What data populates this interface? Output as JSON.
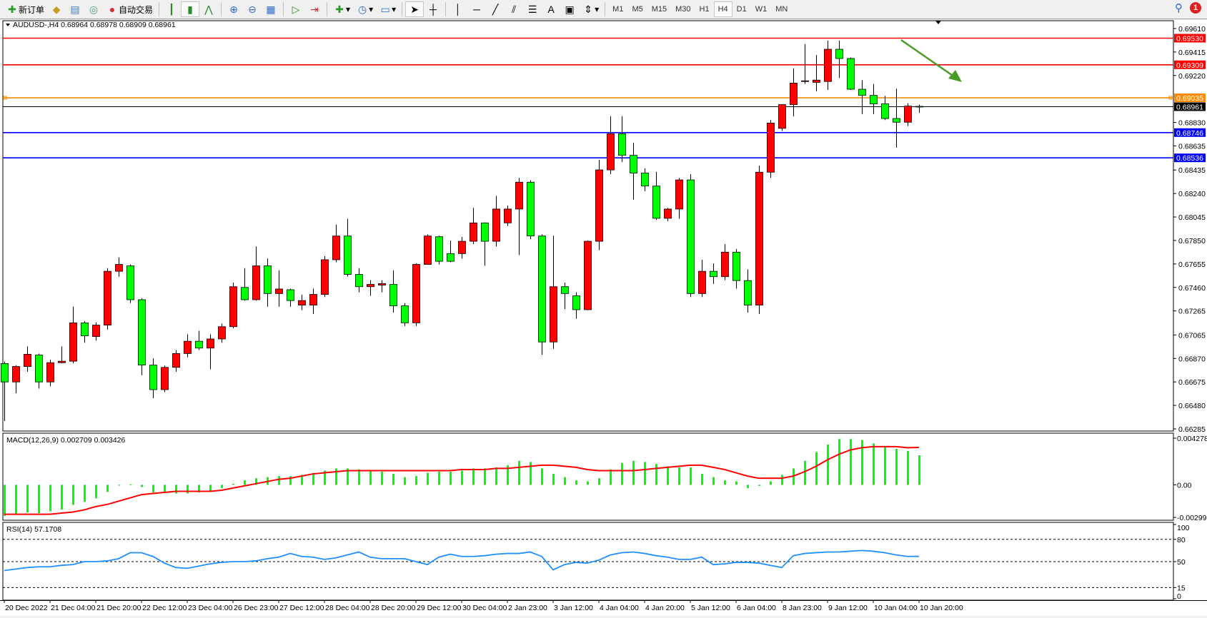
{
  "toolbar": {
    "new_order_label": "新订单",
    "auto_trading_label": "自动交易",
    "icons": [
      "new-order-icon",
      "history-icon",
      "market-watch-icon",
      "signal-icon",
      "auto-trading-icon",
      "bar-chart-icon",
      "candlestick-icon",
      "line-chart-icon",
      "zoom-in-icon",
      "zoom-out-icon",
      "tile-windows-icon",
      "chart-shift-icon",
      "autoscroll-icon",
      "indicators-icon",
      "periods-icon",
      "templates-icon",
      "cursor-icon",
      "crosshair-icon",
      "vertical-line-icon",
      "horizontal-line-icon",
      "trendline-icon",
      "fibonacci-icon",
      "fibo-fan-icon",
      "text-icon",
      "label-icon",
      "arrows-icon"
    ],
    "timeframes": [
      "M1",
      "M5",
      "M15",
      "M30",
      "H1",
      "H4",
      "D1",
      "W1",
      "MN"
    ],
    "active_timeframe": "H4",
    "notification_count": "1"
  },
  "chart": {
    "header": "AUDUSD-,H4  0.68964 0.68978 0.68909 0.68961",
    "bull_color": "#ff0000",
    "bear_color": "#00ff00",
    "price_ticks": [
      "0.69610",
      "0.69415",
      "0.69220",
      "0.68830",
      "0.68635",
      "0.68435",
      "0.68240",
      "0.68045",
      "0.67850",
      "0.67655",
      "0.67460",
      "0.67265",
      "0.67065",
      "0.66870",
      "0.66675",
      "0.66480",
      "0.66285"
    ],
    "price_range": [
      0.66285,
      0.6961
    ],
    "levels": [
      {
        "price": "0.69530",
        "color": "#ff0000"
      },
      {
        "price": "0.69309",
        "color": "#ff0000"
      },
      {
        "price": "0.69035",
        "color": "#ff8c00"
      },
      {
        "price": "0.68961",
        "color": "#000000"
      },
      {
        "price": "0.68746",
        "color": "#0000ff"
      },
      {
        "price": "0.68536",
        "color": "#0000ff"
      }
    ],
    "arrow_color": "#4a9a2a",
    "time_labels": [
      "20 Dec 2022",
      "21 Dec 04:00",
      "21 Dec 20:00",
      "22 Dec 12:00",
      "23 Dec 04:00",
      "26 Dec 23:00",
      "27 Dec 12:00",
      "28 Dec 04:00",
      "28 Dec 20:00",
      "29 Dec 12:00",
      "30 Dec 04:00",
      "2 Jan 23:00",
      "3 Jan 12:00",
      "4 Jan 04:00",
      "4 Jan 20:00",
      "5 Jan 12:00",
      "6 Jan 04:00",
      "8 Jan 23:00",
      "9 Jan 12:00",
      "10 Jan 04:00",
      "10 Jan 20:00"
    ]
  },
  "chart_data": {
    "type": "candlestick",
    "symbol": "AUDUSD-",
    "timeframe": "H4",
    "ohlc": [
      [
        0.66828,
        0.66845,
        0.6635,
        0.66675
      ],
      [
        0.66675,
        0.66815,
        0.6658,
        0.66803
      ],
      [
        0.66803,
        0.6697,
        0.6676,
        0.66905
      ],
      [
        0.66898,
        0.6691,
        0.6662,
        0.66675
      ],
      [
        0.66675,
        0.6686,
        0.6664,
        0.66835
      ],
      [
        0.66835,
        0.6697,
        0.6683,
        0.66847
      ],
      [
        0.66847,
        0.673,
        0.6683,
        0.67166
      ],
      [
        0.67166,
        0.6718,
        0.67,
        0.67058
      ],
      [
        0.67052,
        0.6717,
        0.6702,
        0.67147
      ],
      [
        0.67147,
        0.6762,
        0.6711,
        0.67594
      ],
      [
        0.67594,
        0.6771,
        0.6755,
        0.67651
      ],
      [
        0.67639,
        0.6765,
        0.6733,
        0.67358
      ],
      [
        0.67358,
        0.6737,
        0.6673,
        0.66815
      ],
      [
        0.66815,
        0.6687,
        0.6654,
        0.66611
      ],
      [
        0.66611,
        0.6681,
        0.6659,
        0.66796
      ],
      [
        0.66796,
        0.6694,
        0.6676,
        0.66911
      ],
      [
        0.66911,
        0.6707,
        0.6688,
        0.67013
      ],
      [
        0.67013,
        0.671,
        0.6694,
        0.66956
      ],
      [
        0.66956,
        0.6707,
        0.6678,
        0.67032
      ],
      [
        0.67032,
        0.6716,
        0.67,
        0.67134
      ],
      [
        0.67134,
        0.675,
        0.6712,
        0.67466
      ],
      [
        0.6746,
        0.6762,
        0.6735,
        0.67358
      ],
      [
        0.67358,
        0.678,
        0.6735,
        0.67639
      ],
      [
        0.67639,
        0.677,
        0.673,
        0.67409
      ],
      [
        0.67409,
        0.676,
        0.673,
        0.67447
      ],
      [
        0.67441,
        0.6745,
        0.673,
        0.67351
      ],
      [
        0.67313,
        0.674,
        0.6727,
        0.67351
      ],
      [
        0.67313,
        0.6745,
        0.6724,
        0.67402
      ],
      [
        0.67402,
        0.6772,
        0.6738,
        0.6769
      ],
      [
        0.6769,
        0.6798,
        0.6767,
        0.67887
      ],
      [
        0.67887,
        0.6803,
        0.6755,
        0.67568
      ],
      [
        0.67568,
        0.6762,
        0.6742,
        0.67466
      ],
      [
        0.67466,
        0.6752,
        0.6739,
        0.67485
      ],
      [
        0.67479,
        0.6752,
        0.6742,
        0.67492
      ],
      [
        0.67485,
        0.676,
        0.6725,
        0.67307
      ],
      [
        0.67307,
        0.6733,
        0.6714,
        0.67166
      ],
      [
        0.67166,
        0.6766,
        0.6714,
        0.67651
      ],
      [
        0.67651,
        0.679,
        0.6765,
        0.67887
      ],
      [
        0.67881,
        0.6789,
        0.6765,
        0.67677
      ],
      [
        0.67741,
        0.6785,
        0.6767,
        0.67677
      ],
      [
        0.67741,
        0.6788,
        0.677,
        0.67843
      ],
      [
        0.67843,
        0.6812,
        0.6782,
        0.67996
      ],
      [
        0.67996,
        0.68,
        0.6764,
        0.67843
      ],
      [
        0.67843,
        0.6822,
        0.678,
        0.68111
      ],
      [
        0.67996,
        0.6814,
        0.6797,
        0.68111
      ],
      [
        0.68111,
        0.6837,
        0.6773,
        0.68334
      ],
      [
        0.68334,
        0.6835,
        0.6786,
        0.67887
      ],
      [
        0.67887,
        0.679,
        0.669,
        0.67007
      ],
      [
        0.67007,
        0.6789,
        0.6695,
        0.67466
      ],
      [
        0.67466,
        0.675,
        0.6728,
        0.67409
      ],
      [
        0.6739,
        0.6742,
        0.672,
        0.67275
      ],
      [
        0.67275,
        0.6785,
        0.6727,
        0.67843
      ],
      [
        0.67843,
        0.6852,
        0.6777,
        0.68436
      ],
      [
        0.68436,
        0.6888,
        0.684,
        0.68736
      ],
      [
        0.68736,
        0.6888,
        0.685,
        0.68557
      ],
      [
        0.68557,
        0.6866,
        0.6819,
        0.6841
      ],
      [
        0.6841,
        0.6845,
        0.6826,
        0.68302
      ],
      [
        0.68302,
        0.6842,
        0.6802,
        0.68034
      ],
      [
        0.68034,
        0.6812,
        0.6801,
        0.68111
      ],
      [
        0.68111,
        0.6837,
        0.6803,
        0.68353
      ],
      [
        0.68353,
        0.684,
        0.6738,
        0.67409
      ],
      [
        0.67409,
        0.6769,
        0.6738,
        0.67594
      ],
      [
        0.67594,
        0.6766,
        0.6749,
        0.67549
      ],
      [
        0.67549,
        0.6782,
        0.6752,
        0.67753
      ],
      [
        0.67753,
        0.6778,
        0.6745,
        0.67517
      ],
      [
        0.67517,
        0.6761,
        0.6725,
        0.67313
      ],
      [
        0.67313,
        0.6847,
        0.6724,
        0.68417
      ],
      [
        0.68417,
        0.6885,
        0.6837,
        0.68825
      ],
      [
        0.68781,
        0.6898,
        0.6876,
        0.68978
      ],
      [
        0.68978,
        0.6928,
        0.6888,
        0.69157
      ],
      [
        0.6917,
        0.6948,
        0.6915,
        0.69176
      ],
      [
        0.69163,
        0.6939,
        0.6909,
        0.69182
      ],
      [
        0.6917,
        0.6951,
        0.691,
        0.69438
      ],
      [
        0.69438,
        0.6951,
        0.692,
        0.69361
      ],
      [
        0.69361,
        0.6937,
        0.691,
        0.69106
      ],
      [
        0.69106,
        0.6918,
        0.689,
        0.69055
      ],
      [
        0.69055,
        0.6915,
        0.689,
        0.68985
      ],
      [
        0.68985,
        0.6905,
        0.6885,
        0.68863
      ],
      [
        0.68863,
        0.6911,
        0.6862,
        0.68832
      ],
      [
        0.68832,
        0.6899,
        0.688,
        0.68966
      ],
      [
        0.68964,
        0.68978,
        0.68909,
        0.68961
      ]
    ],
    "macd": {
      "label": "MACD(12,26,9) 0.002709 0.003426",
      "axis_ticks": [
        "0.004278",
        "0.00",
        "-0.00299"
      ],
      "range": [
        -0.00299,
        0.004278
      ],
      "histogram_color": "#00ff00",
      "signal_color": "#ff0000",
      "histogram": [
        -0.00286,
        -0.00265,
        -0.00254,
        -0.0026,
        -0.00243,
        -0.00228,
        -0.00184,
        -0.00156,
        -0.00124,
        -0.00065,
        -7e-05,
        4e-05,
        -0.0002,
        -0.0007,
        -0.0007,
        -0.0008,
        -0.0008,
        -0.0007,
        -0.0006,
        -0.0003,
        0.0001,
        0.0004,
        0.0006,
        0.0007,
        0.0008,
        0.0008,
        0.0009,
        0.0011,
        0.0013,
        0.0015,
        0.0015,
        0.0014,
        0.0013,
        0.0012,
        0.001,
        0.0007,
        0.0008,
        0.0011,
        0.0012,
        0.0012,
        0.0013,
        0.0015,
        0.0015,
        0.0016,
        0.0018,
        0.0022,
        0.0021,
        0.0015,
        0.001,
        0.0007,
        0.0004,
        0.0003,
        0.0006,
        0.0014,
        0.002,
        0.0022,
        0.0021,
        0.0019,
        0.0017,
        0.0016,
        0.0016,
        0.001,
        0.0007,
        0.0004,
        0.0003,
        -0.0003,
        -0.0001,
        0.0003,
        0.0009,
        0.0015,
        0.0022,
        0.003,
        0.0037,
        0.0042,
        0.0042,
        0.0041,
        0.0038,
        0.0035,
        0.0033,
        0.0031,
        0.002709
      ],
      "signal": [
        -0.0027,
        -0.0027,
        -0.0027,
        -0.0027,
        -0.0027,
        -0.0026,
        -0.0025,
        -0.0023,
        -0.002,
        -0.0018,
        -0.0015,
        -0.0012,
        -0.0009,
        -0.0008,
        -0.0007,
        -0.0006,
        -0.0006,
        -0.0006,
        -0.0006,
        -0.0005,
        -0.0003,
        -0.0001,
        0.0001,
        0.0003,
        0.0005,
        0.0006,
        0.0008,
        0.001,
        0.0011,
        0.0012,
        0.0013,
        0.0013,
        0.0013,
        0.0013,
        0.0013,
        0.0013,
        0.0013,
        0.0013,
        0.0013,
        0.0013,
        0.0014,
        0.0014,
        0.0014,
        0.0015,
        0.0015,
        0.0016,
        0.0017,
        0.0018,
        0.0018,
        0.0017,
        0.0016,
        0.0014,
        0.0013,
        0.0013,
        0.0013,
        0.0013,
        0.0014,
        0.0015,
        0.0016,
        0.0017,
        0.0018,
        0.0018,
        0.0016,
        0.0014,
        0.0011,
        0.0008,
        0.0006,
        0.0006,
        0.0006,
        0.0008,
        0.0012,
        0.0017,
        0.0023,
        0.0028,
        0.0032,
        0.0034,
        0.0035,
        0.0035,
        0.0035,
        0.0034,
        0.003426
      ]
    },
    "rsi": {
      "label": "RSI(14) 57.1708",
      "axis_ticks": [
        "100",
        "80",
        "50",
        "15",
        "0"
      ],
      "levels": [
        80,
        50,
        15
      ],
      "line_color": "#1e90ff",
      "values": [
        38,
        40,
        42,
        43,
        43,
        45,
        46,
        50,
        50,
        51,
        54,
        62,
        62,
        57,
        48,
        42,
        41,
        44,
        47,
        49,
        50,
        50,
        51,
        54,
        56,
        61,
        57,
        56,
        53,
        55,
        59,
        63,
        56,
        54,
        54,
        54,
        50,
        46,
        56,
        60,
        57,
        57,
        58,
        60,
        61,
        61,
        63,
        57,
        39,
        46,
        49,
        48,
        52,
        59,
        62,
        63,
        61,
        58,
        56,
        53,
        53,
        56,
        46,
        47,
        49,
        49,
        48,
        45,
        42,
        58,
        61,
        62,
        63,
        63,
        64,
        65,
        64,
        62,
        59,
        57,
        57.1708
      ]
    }
  }
}
